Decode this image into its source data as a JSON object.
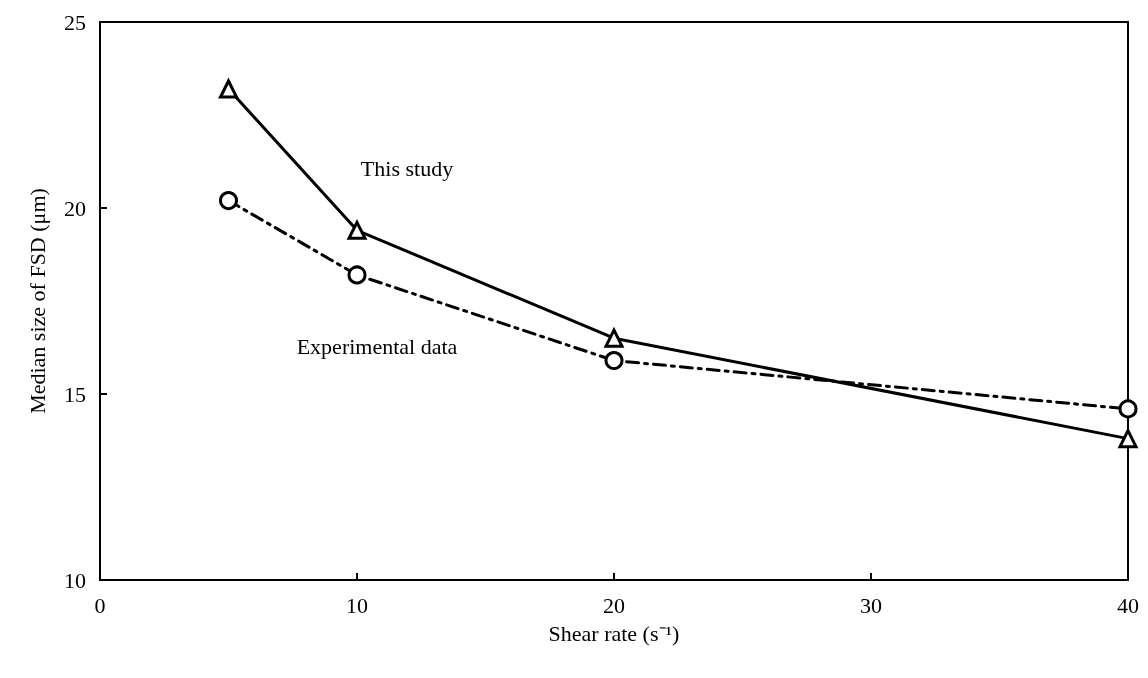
{
  "chart_data": {
    "type": "line",
    "xlabel": "Shear rate (s⁻¹)",
    "ylabel": "Median size of FSD (μm)",
    "xlim": [
      0,
      40
    ],
    "xticks": [
      0,
      10,
      20,
      30,
      40
    ],
    "ylim": [
      10,
      25
    ],
    "yticks": [
      10,
      15,
      20,
      25
    ],
    "grid": false,
    "series": [
      {
        "name": "This study",
        "x": [
          5,
          10,
          20,
          40
        ],
        "values": [
          23.2,
          19.4,
          16.5,
          13.8
        ],
        "color": "#000000",
        "marker": "triangle",
        "line_style": "solid"
      },
      {
        "name": "Experimental data",
        "x": [
          5,
          10,
          20,
          40
        ],
        "values": [
          20.2,
          18.2,
          15.9,
          14.6
        ],
        "color": "#000000",
        "marker": "circle",
        "line_style": "dashed"
      }
    ]
  }
}
